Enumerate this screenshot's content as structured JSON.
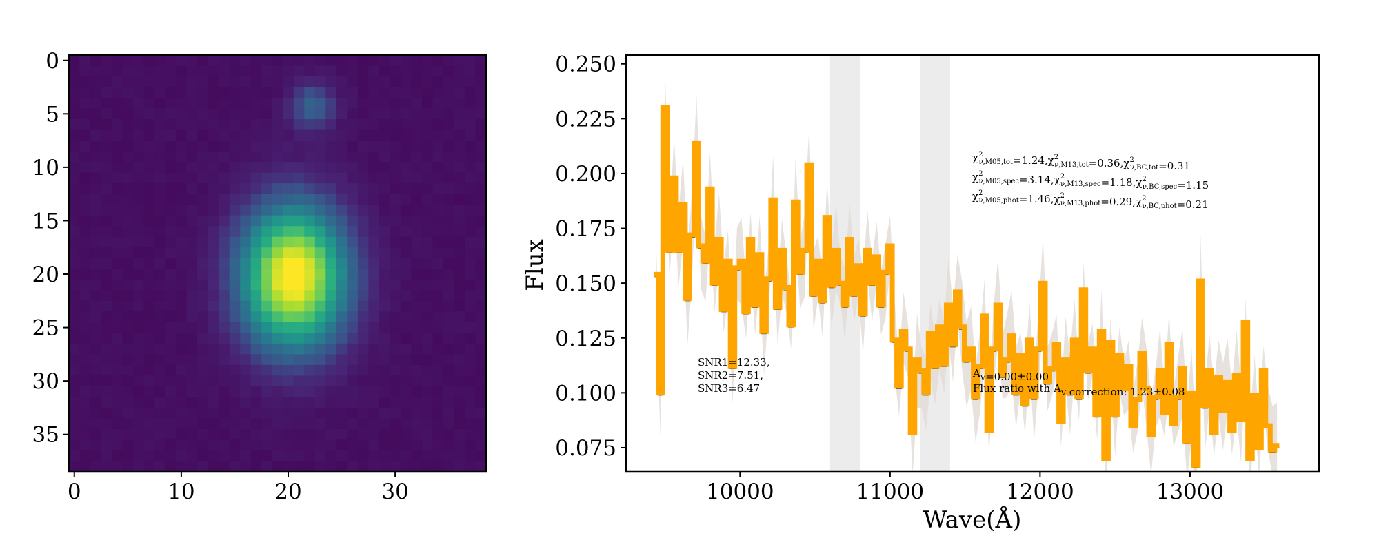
{
  "chart_data": [
    {
      "type": "heatmap",
      "colormap": "viridis",
      "nx": 39,
      "ny": 39,
      "xlim": [
        -0.5,
        38.5
      ],
      "ylim": [
        38.5,
        -0.5
      ],
      "xticks": [
        0,
        10,
        20,
        30
      ],
      "yticks": [
        0,
        5,
        10,
        15,
        20,
        25,
        30,
        35
      ],
      "sources": [
        {
          "name": "main",
          "x": 20.5,
          "y": 20.3,
          "peak": 1.0,
          "sigma_x": 3.4,
          "sigma_y": 4.6
        },
        {
          "name": "companion",
          "x": 22.3,
          "y": 4.3,
          "peak": 0.26,
          "sigma_x": 1.5,
          "sigma_y": 1.6
        }
      ],
      "background": 0.035
    },
    {
      "type": "line",
      "xlabel": "Wave(Å)",
      "ylabel": "Flux",
      "xlim": [
        9240,
        13860
      ],
      "ylim": [
        0.064,
        0.254
      ],
      "xticks": [
        10000,
        11000,
        12000,
        13000
      ],
      "yticks": [
        0.075,
        0.1,
        0.125,
        0.15,
        0.175,
        0.2,
        0.225,
        0.25
      ],
      "xtick_labels": [
        "10000",
        "11000",
        "12000",
        "13000"
      ],
      "ytick_labels": [
        "0.075",
        "0.100",
        "0.125",
        "0.150",
        "0.175",
        "0.200",
        "0.225",
        "0.250"
      ],
      "shaded_bands": [
        [
          10600,
          10800
        ],
        [
          11200,
          11400
        ]
      ],
      "colors": {
        "spectrum": "#ffa500",
        "model": "#111111",
        "error_band": "#e3ddd7",
        "bands": "#ececec"
      },
      "series": [
        {
          "style": "steps",
          "x": [
            9440,
            9470,
            9500,
            9530,
            9560,
            9590,
            9620,
            9650,
            9680,
            9710,
            9740,
            9770,
            9800,
            9830,
            9860,
            9890,
            9920,
            9950,
            9980,
            10010,
            10040,
            10070,
            10100,
            10130,
            10160,
            10190,
            10220,
            10250,
            10280,
            10310,
            10340,
            10370,
            10400,
            10430,
            10460,
            10490,
            10520,
            10550,
            10580,
            10610,
            10640,
            10670,
            10700,
            10730,
            10760,
            10790,
            10820,
            10850,
            10880,
            10910,
            10940,
            10970,
            11000,
            11030,
            11060,
            11090,
            11120,
            11150,
            11180,
            11210,
            11240,
            11270,
            11300,
            11330,
            11360,
            11390,
            11420,
            11450,
            11480,
            11510,
            11540,
            11570,
            11600,
            11630,
            11660,
            11690,
            11720,
            11750,
            11780,
            11810,
            11840,
            11870,
            11900,
            11930,
            11960,
            11990,
            12020,
            12050,
            12080,
            12110,
            12140,
            12170,
            12200,
            12230,
            12260,
            12290,
            12320,
            12350,
            12380,
            12410,
            12440,
            12470,
            12500,
            12530,
            12560,
            12590,
            12620,
            12650,
            12680,
            12710,
            12740,
            12770,
            12800,
            12830,
            12860,
            12890,
            12920,
            12950,
            12980,
            13010,
            13040,
            13070,
            13100,
            13130,
            13160,
            13190,
            13220,
            13250,
            13280,
            13310,
            13340,
            13370,
            13400,
            13430,
            13460,
            13490,
            13520,
            13550,
            13580
          ],
          "y": [
            0.154,
            0.1,
            0.23,
            0.165,
            0.198,
            0.165,
            0.186,
            0.143,
            0.172,
            0.214,
            0.167,
            0.16,
            0.193,
            0.15,
            0.17,
            0.138,
            0.16,
            0.112,
            0.157,
            0.16,
            0.137,
            0.17,
            0.14,
            0.163,
            0.128,
            0.152,
            0.188,
            0.139,
            0.165,
            0.148,
            0.131,
            0.187,
            0.155,
            0.165,
            0.204,
            0.145,
            0.16,
            0.142,
            0.18,
            0.149,
            0.165,
            0.15,
            0.14,
            0.17,
            0.145,
            0.158,
            0.136,
            0.165,
            0.15,
            0.162,
            0.14,
            0.155,
            0.167,
            0.124,
            0.103,
            0.128,
            0.12,
            0.082,
            0.115,
            0.11,
            0.1,
            0.127,
            0.112,
            0.13,
            0.113,
            0.14,
            0.122,
            0.146,
            0.13,
            0.115,
            0.12,
            0.098,
            0.112,
            0.135,
            0.083,
            0.12,
            0.14,
            0.108,
            0.115,
            0.126,
            0.1,
            0.117,
            0.095,
            0.124,
            0.098,
            0.12,
            0.15,
            0.105,
            0.111,
            0.122,
            0.087,
            0.115,
            0.1,
            0.124,
            0.098,
            0.147,
            0.11,
            0.12,
            0.09,
            0.128,
            0.07,
            0.123,
            0.09,
            0.117,
            0.102,
            0.112,
            0.085,
            0.097,
            0.118,
            0.102,
            0.081,
            0.098,
            0.11,
            0.091,
            0.122,
            0.086,
            0.098,
            0.111,
            0.078,
            0.1,
            0.067,
            0.151,
            0.094,
            0.11,
            0.082,
            0.107,
            0.092,
            0.105,
            0.083,
            0.108,
            0.088,
            0.132,
            0.07,
            0.099,
            0.075,
            0.11,
            0.085,
            0.074,
            0.076
          ]
        }
      ],
      "annotations": {
        "snr": [
          "SNR1=12.33,",
          "SNR2=7.51,",
          "SNR3=6.47"
        ],
        "chi_lines": [
          [
            {
              "t": "χ",
              "sup": "2",
              "sub": "ν,M05,tot"
            },
            {
              "t": "=1.24,"
            },
            {
              "t": "χ",
              "sup": "2",
              "sub": "ν,M13,tot"
            },
            {
              "t": "=0.36,"
            },
            {
              "t": "χ",
              "sup": "2",
              "sub": "ν,BC,tot"
            },
            {
              "t": "=0.31"
            }
          ],
          [
            {
              "t": "χ",
              "sup": "2",
              "sub": "ν,M05,spec"
            },
            {
              "t": "=3.14,"
            },
            {
              "t": "χ",
              "sup": "2",
              "sub": "ν,M13,spec"
            },
            {
              "t": "=1.18,"
            },
            {
              "t": "χ",
              "sup": "2",
              "sub": "ν,BC,spec"
            },
            {
              "t": "=1.15"
            }
          ],
          [
            {
              "t": "χ",
              "sup": "2",
              "sub": "ν,M05,phot"
            },
            {
              "t": "=1.46,"
            },
            {
              "t": "χ",
              "sup": "2",
              "sub": "ν,M13,phot"
            },
            {
              "t": "=0.29,"
            },
            {
              "t": "χ",
              "sup": "2",
              "sub": "ν,BC,phot"
            },
            {
              "t": "=0.21"
            }
          ]
        ],
        "av_line1": [
          {
            "t": "A",
            "sub": "V"
          },
          {
            "t": "=0.00±0.00"
          }
        ],
        "av_line2": [
          {
            "t": "Flux ratio with "
          },
          {
            "t": "A",
            "sub": "V"
          },
          {
            "t": " correction: 1.23±0.08"
          }
        ]
      }
    }
  ]
}
